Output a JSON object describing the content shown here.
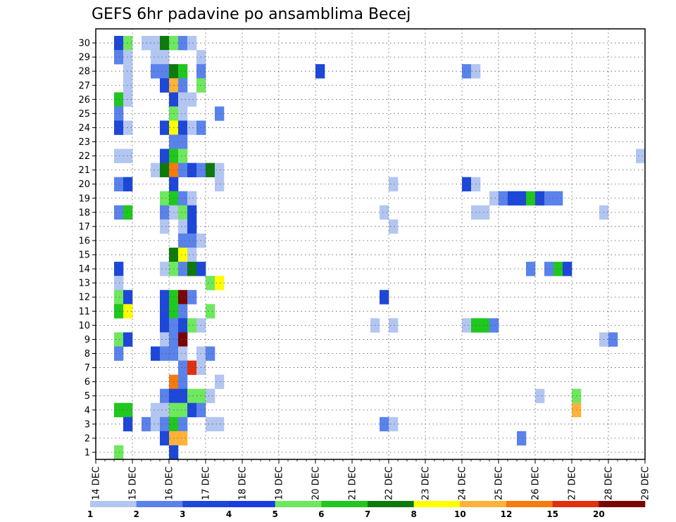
{
  "chart_data": {
    "type": "heatmap",
    "title": "GEFS 6hr padavine po ansamblima Becej",
    "xlabel": "",
    "ylabel": "",
    "x_start": "14 DEC",
    "x_step_hours": 6,
    "x_ticks": [
      "14 DEC",
      "15 DEC",
      "16 DEC",
      "17 DEC",
      "18 DEC",
      "19 DEC",
      "20 DEC",
      "21 DEC",
      "22 DEC",
      "23 DEC",
      "24 DEC",
      "25 DEC",
      "26 DEC",
      "27 DEC",
      "28 DEC",
      "29 DEC"
    ],
    "y_ticks": [
      "1",
      "2",
      "3",
      "4",
      "5",
      "6",
      "7",
      "8",
      "9",
      "10",
      "11",
      "12",
      "13",
      "14",
      "15",
      "16",
      "17",
      "18",
      "19",
      "20",
      "21",
      "22",
      "23",
      "24",
      "25",
      "26",
      "27",
      "28",
      "29",
      "30"
    ],
    "grid": true,
    "colorbar": {
      "labels": [
        "1",
        "2",
        "3",
        "4",
        "5",
        "6",
        "7",
        "8",
        "10",
        "12",
        "15",
        "20"
      ],
      "colors": [
        "#b3c6f2",
        "#5a82eb",
        "#1d47d8",
        "#1a3ce0",
        "#6ee85e",
        "#1fc71f",
        "#0d7a0d",
        "#ffff00",
        "#ffb23a",
        "#f57a10",
        "#e0300e",
        "#7a0505"
      ]
    },
    "cells": [
      {
        "member": 30,
        "step": 2,
        "level": 3
      },
      {
        "member": 30,
        "step": 3,
        "level": 5
      },
      {
        "member": 30,
        "step": 5,
        "level": 1
      },
      {
        "member": 30,
        "step": 6,
        "level": 1
      },
      {
        "member": 30,
        "step": 7,
        "level": 7
      },
      {
        "member": 30,
        "step": 8,
        "level": 5
      },
      {
        "member": 30,
        "step": 9,
        "level": 2
      },
      {
        "member": 30,
        "step": 10,
        "level": 1
      },
      {
        "member": 29,
        "step": 2,
        "level": 2
      },
      {
        "member": 29,
        "step": 3,
        "level": 1
      },
      {
        "member": 29,
        "step": 6,
        "level": 1
      },
      {
        "member": 29,
        "step": 7,
        "level": 1
      },
      {
        "member": 29,
        "step": 11,
        "level": 1
      },
      {
        "member": 28,
        "step": 3,
        "level": 1
      },
      {
        "member": 28,
        "step": 6,
        "level": 2
      },
      {
        "member": 28,
        "step": 7,
        "level": 2
      },
      {
        "member": 28,
        "step": 8,
        "level": 7
      },
      {
        "member": 28,
        "step": 9,
        "level": 6
      },
      {
        "member": 28,
        "step": 11,
        "level": 2
      },
      {
        "member": 28,
        "step": 24,
        "level": 3
      },
      {
        "member": 28,
        "step": 40,
        "level": 2
      },
      {
        "member": 28,
        "step": 41,
        "level": 1
      },
      {
        "member": 27,
        "step": 3,
        "level": 1
      },
      {
        "member": 27,
        "step": 7,
        "level": 3
      },
      {
        "member": 27,
        "step": 8,
        "level": 9
      },
      {
        "member": 27,
        "step": 9,
        "level": 2
      },
      {
        "member": 27,
        "step": 11,
        "level": 5
      },
      {
        "member": 26,
        "step": 2,
        "level": 6
      },
      {
        "member": 26,
        "step": 3,
        "level": 1
      },
      {
        "member": 26,
        "step": 8,
        "level": 3
      },
      {
        "member": 26,
        "step": 9,
        "level": 1
      },
      {
        "member": 26,
        "step": 10,
        "level": 1
      },
      {
        "member": 25,
        "step": 2,
        "level": 2
      },
      {
        "member": 25,
        "step": 8,
        "level": 5
      },
      {
        "member": 25,
        "step": 9,
        "level": 1
      },
      {
        "member": 25,
        "step": 13,
        "level": 2
      },
      {
        "member": 24,
        "step": 2,
        "level": 3
      },
      {
        "member": 24,
        "step": 3,
        "level": 1
      },
      {
        "member": 24,
        "step": 7,
        "level": 3
      },
      {
        "member": 24,
        "step": 8,
        "level": 8
      },
      {
        "member": 24,
        "step": 9,
        "level": 3
      },
      {
        "member": 24,
        "step": 10,
        "level": 1
      },
      {
        "member": 24,
        "step": 11,
        "level": 2
      },
      {
        "member": 23,
        "step": 8,
        "level": 2
      },
      {
        "member": 23,
        "step": 9,
        "level": 2
      },
      {
        "member": 22,
        "step": 2,
        "level": 1
      },
      {
        "member": 22,
        "step": 3,
        "level": 1
      },
      {
        "member": 22,
        "step": 7,
        "level": 3
      },
      {
        "member": 22,
        "step": 8,
        "level": 6
      },
      {
        "member": 22,
        "step": 9,
        "level": 5
      },
      {
        "member": 22,
        "step": 59,
        "level": 1
      },
      {
        "member": 21,
        "step": 6,
        "level": 1
      },
      {
        "member": 21,
        "step": 7,
        "level": 7
      },
      {
        "member": 21,
        "step": 8,
        "level": 10
      },
      {
        "member": 21,
        "step": 9,
        "level": 2
      },
      {
        "member": 21,
        "step": 10,
        "level": 3
      },
      {
        "member": 21,
        "step": 11,
        "level": 2
      },
      {
        "member": 21,
        "step": 12,
        "level": 7
      },
      {
        "member": 21,
        "step": 13,
        "level": 1
      },
      {
        "member": 20,
        "step": 2,
        "level": 2
      },
      {
        "member": 20,
        "step": 3,
        "level": 3
      },
      {
        "member": 20,
        "step": 8,
        "level": 3
      },
      {
        "member": 20,
        "step": 13,
        "level": 1
      },
      {
        "member": 20,
        "step": 32,
        "level": 1
      },
      {
        "member": 20,
        "step": 40,
        "level": 3
      },
      {
        "member": 20,
        "step": 41,
        "level": 1
      },
      {
        "member": 19,
        "step": 7,
        "level": 5
      },
      {
        "member": 19,
        "step": 8,
        "level": 6
      },
      {
        "member": 19,
        "step": 9,
        "level": 2
      },
      {
        "member": 19,
        "step": 10,
        "level": 1
      },
      {
        "member": 19,
        "step": 43,
        "level": 1
      },
      {
        "member": 19,
        "step": 44,
        "level": 2
      },
      {
        "member": 19,
        "step": 45,
        "level": 3
      },
      {
        "member": 19,
        "step": 46,
        "level": 3
      },
      {
        "member": 19,
        "step": 47,
        "level": 6
      },
      {
        "member": 19,
        "step": 48,
        "level": 3
      },
      {
        "member": 19,
        "step": 49,
        "level": 2
      },
      {
        "member": 19,
        "step": 50,
        "level": 2
      },
      {
        "member": 18,
        "step": 2,
        "level": 2
      },
      {
        "member": 18,
        "step": 3,
        "level": 6
      },
      {
        "member": 18,
        "step": 7,
        "level": 2
      },
      {
        "member": 18,
        "step": 8,
        "level": 1
      },
      {
        "member": 18,
        "step": 9,
        "level": 5
      },
      {
        "member": 18,
        "step": 10,
        "level": 3
      },
      {
        "member": 18,
        "step": 31,
        "level": 1
      },
      {
        "member": 18,
        "step": 41,
        "level": 1
      },
      {
        "member": 18,
        "step": 42,
        "level": 1
      },
      {
        "member": 18,
        "step": 55,
        "level": 1
      },
      {
        "member": 17,
        "step": 7,
        "level": 1
      },
      {
        "member": 17,
        "step": 9,
        "level": 1
      },
      {
        "member": 17,
        "step": 10,
        "level": 3
      },
      {
        "member": 17,
        "step": 32,
        "level": 1
      },
      {
        "member": 16,
        "step": 9,
        "level": 2
      },
      {
        "member": 16,
        "step": 10,
        "level": 2
      },
      {
        "member": 16,
        "step": 11,
        "level": 1
      },
      {
        "member": 15,
        "step": 8,
        "level": 7
      },
      {
        "member": 15,
        "step": 9,
        "level": 8
      },
      {
        "member": 15,
        "step": 10,
        "level": 1
      },
      {
        "member": 14,
        "step": 2,
        "level": 3
      },
      {
        "member": 14,
        "step": 7,
        "level": 1
      },
      {
        "member": 14,
        "step": 8,
        "level": 5
      },
      {
        "member": 14,
        "step": 9,
        "level": 2
      },
      {
        "member": 14,
        "step": 10,
        "level": 7
      },
      {
        "member": 14,
        "step": 11,
        "level": 3
      },
      {
        "member": 14,
        "step": 47,
        "level": 2
      },
      {
        "member": 14,
        "step": 49,
        "level": 2
      },
      {
        "member": 14,
        "step": 50,
        "level": 6
      },
      {
        "member": 14,
        "step": 51,
        "level": 3
      },
      {
        "member": 13,
        "step": 2,
        "level": 1
      },
      {
        "member": 13,
        "step": 12,
        "level": 5
      },
      {
        "member": 13,
        "step": 13,
        "level": 8
      },
      {
        "member": 12,
        "step": 2,
        "level": 5
      },
      {
        "member": 12,
        "step": 3,
        "level": 3
      },
      {
        "member": 12,
        "step": 7,
        "level": 3
      },
      {
        "member": 12,
        "step": 8,
        "level": 6
      },
      {
        "member": 12,
        "step": 9,
        "level": 12
      },
      {
        "member": 12,
        "step": 10,
        "level": 2
      },
      {
        "member": 12,
        "step": 31,
        "level": 3
      },
      {
        "member": 11,
        "step": 2,
        "level": 6
      },
      {
        "member": 11,
        "step": 3,
        "level": 8
      },
      {
        "member": 11,
        "step": 7,
        "level": 3
      },
      {
        "member": 11,
        "step": 8,
        "level": 6
      },
      {
        "member": 11,
        "step": 9,
        "level": 2
      },
      {
        "member": 11,
        "step": 12,
        "level": 5
      },
      {
        "member": 10,
        "step": 7,
        "level": 3
      },
      {
        "member": 10,
        "step": 8,
        "level": 2
      },
      {
        "member": 10,
        "step": 9,
        "level": 3
      },
      {
        "member": 10,
        "step": 10,
        "level": 5
      },
      {
        "member": 10,
        "step": 11,
        "level": 1
      },
      {
        "member": 10,
        "step": 30,
        "level": 1
      },
      {
        "member": 10,
        "step": 32,
        "level": 1
      },
      {
        "member": 10,
        "step": 40,
        "level": 1
      },
      {
        "member": 10,
        "step": 41,
        "level": 6
      },
      {
        "member": 10,
        "step": 42,
        "level": 6
      },
      {
        "member": 10,
        "step": 43,
        "level": 2
      },
      {
        "member": 9,
        "step": 2,
        "level": 5
      },
      {
        "member": 9,
        "step": 3,
        "level": 3
      },
      {
        "member": 9,
        "step": 7,
        "level": 1
      },
      {
        "member": 9,
        "step": 8,
        "level": 2
      },
      {
        "member": 9,
        "step": 9,
        "level": 12
      },
      {
        "member": 9,
        "step": 55,
        "level": 1
      },
      {
        "member": 9,
        "step": 56,
        "level": 2
      },
      {
        "member": 8,
        "step": 2,
        "level": 2
      },
      {
        "member": 8,
        "step": 6,
        "level": 3
      },
      {
        "member": 8,
        "step": 7,
        "level": 2
      },
      {
        "member": 8,
        "step": 8,
        "level": 2
      },
      {
        "member": 8,
        "step": 9,
        "level": 1
      },
      {
        "member": 8,
        "step": 11,
        "level": 1
      },
      {
        "member": 8,
        "step": 12,
        "level": 2
      },
      {
        "member": 7,
        "step": 9,
        "level": 2
      },
      {
        "member": 7,
        "step": 10,
        "level": 11
      },
      {
        "member": 7,
        "step": 11,
        "level": 1
      },
      {
        "member": 6,
        "step": 8,
        "level": 10
      },
      {
        "member": 6,
        "step": 9,
        "level": 2
      },
      {
        "member": 6,
        "step": 13,
        "level": 1
      },
      {
        "member": 5,
        "step": 7,
        "level": 2
      },
      {
        "member": 5,
        "step": 8,
        "level": 3
      },
      {
        "member": 5,
        "step": 9,
        "level": 3
      },
      {
        "member": 5,
        "step": 10,
        "level": 5
      },
      {
        "member": 5,
        "step": 11,
        "level": 5
      },
      {
        "member": 5,
        "step": 12,
        "level": 1
      },
      {
        "member": 5,
        "step": 48,
        "level": 1
      },
      {
        "member": 5,
        "step": 52,
        "level": 5
      },
      {
        "member": 4,
        "step": 2,
        "level": 6
      },
      {
        "member": 4,
        "step": 3,
        "level": 6
      },
      {
        "member": 4,
        "step": 6,
        "level": 1
      },
      {
        "member": 4,
        "step": 7,
        "level": 1
      },
      {
        "member": 4,
        "step": 8,
        "level": 5
      },
      {
        "member": 4,
        "step": 9,
        "level": 5
      },
      {
        "member": 4,
        "step": 10,
        "level": 3
      },
      {
        "member": 4,
        "step": 11,
        "level": 2
      },
      {
        "member": 4,
        "step": 52,
        "level": 9
      },
      {
        "member": 3,
        "step": 3,
        "level": 3
      },
      {
        "member": 3,
        "step": 5,
        "level": 2
      },
      {
        "member": 3,
        "step": 6,
        "level": 1
      },
      {
        "member": 3,
        "step": 7,
        "level": 2
      },
      {
        "member": 3,
        "step": 8,
        "level": 6
      },
      {
        "member": 3,
        "step": 9,
        "level": 2
      },
      {
        "member": 3,
        "step": 12,
        "level": 1
      },
      {
        "member": 3,
        "step": 13,
        "level": 1
      },
      {
        "member": 3,
        "step": 31,
        "level": 2
      },
      {
        "member": 3,
        "step": 32,
        "level": 1
      },
      {
        "member": 2,
        "step": 7,
        "level": 3
      },
      {
        "member": 2,
        "step": 8,
        "level": 9
      },
      {
        "member": 2,
        "step": 9,
        "level": 9
      },
      {
        "member": 2,
        "step": 46,
        "level": 2
      },
      {
        "member": 1,
        "step": 2,
        "level": 5
      },
      {
        "member": 1,
        "step": 8,
        "level": 3
      }
    ]
  }
}
